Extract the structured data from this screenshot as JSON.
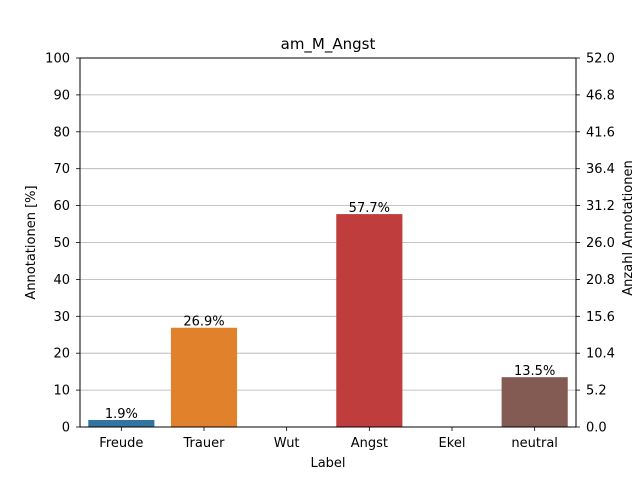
{
  "chart_data": {
    "type": "bar",
    "title": "am_M_Angst",
    "xlabel": "Label",
    "ylabel": "Annotationen [%]",
    "ylabel_right": "Anzahl Annotationen",
    "categories": [
      "Freude",
      "Trauer",
      "Wut",
      "Angst",
      "Ekel",
      "neutral"
    ],
    "values": [
      1.9,
      26.9,
      0,
      57.7,
      0,
      13.5
    ],
    "value_labels": [
      "1.9%",
      "26.9%",
      "",
      "57.7%",
      "",
      "13.5%"
    ],
    "colors": [
      "#3274a1",
      "#e1812c",
      "#3a923a",
      "#c03d3e",
      "#9372b2",
      "#845b53"
    ],
    "ylim": [
      0,
      100
    ],
    "yticks": [
      "0",
      "10",
      "20",
      "30",
      "40",
      "50",
      "60",
      "70",
      "80",
      "90",
      "100"
    ],
    "ylim_right": [
      0,
      52
    ],
    "yticks_right": [
      "0.0",
      "5.2",
      "10.4",
      "15.6",
      "20.8",
      "26.0",
      "31.2",
      "36.4",
      "41.6",
      "46.8",
      "52.0"
    ],
    "grid": true
  }
}
